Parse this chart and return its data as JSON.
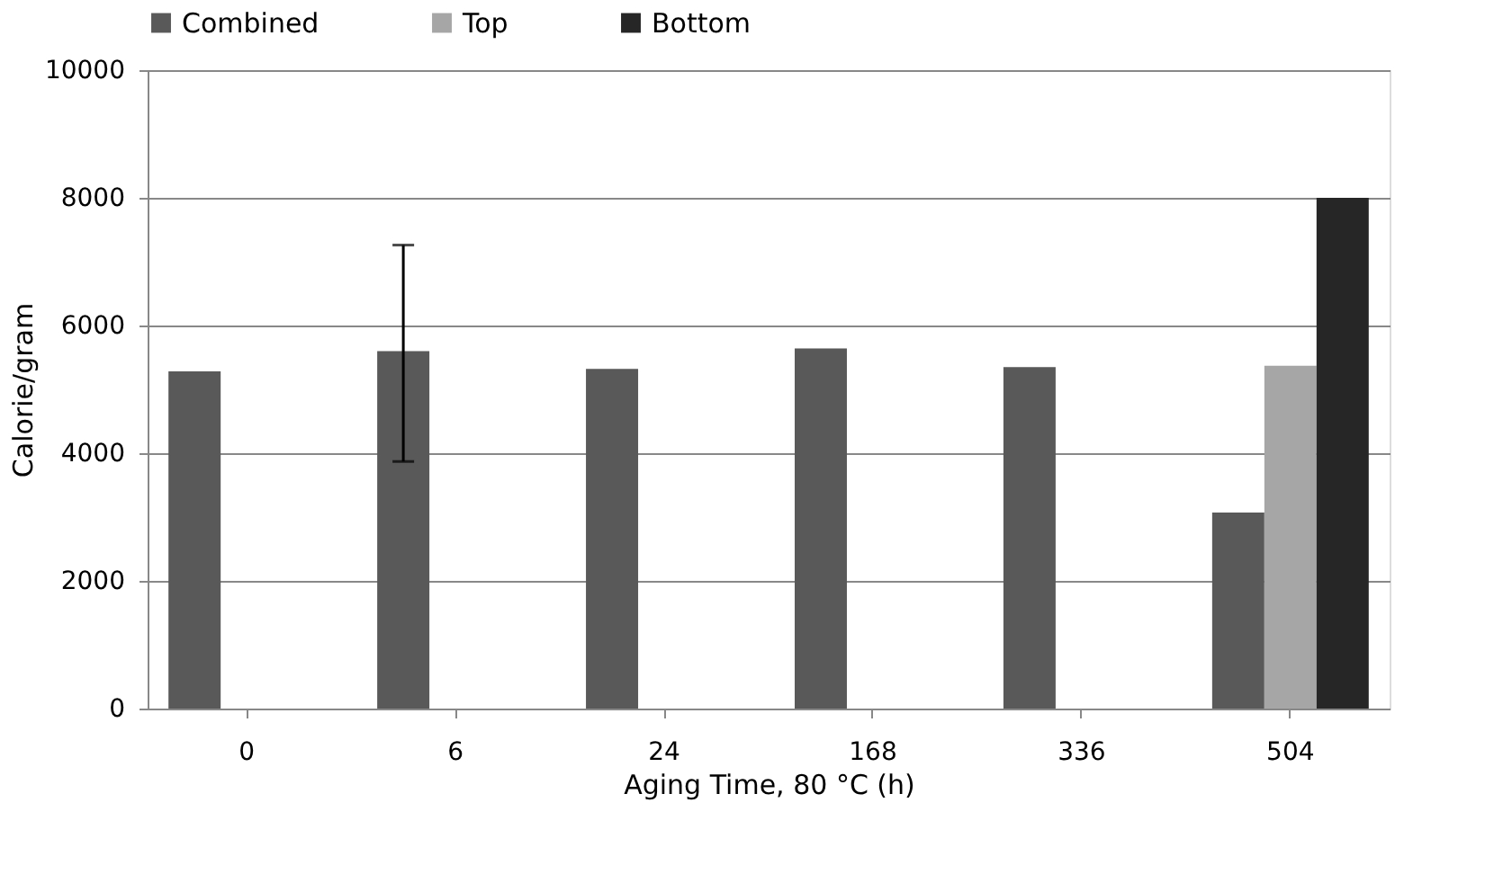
{
  "chart_data": {
    "type": "bar",
    "xlabel": "Aging Time, 80 °C (h)",
    "ylabel": "Calorie/gram",
    "categories": [
      "0",
      "6",
      "24",
      "168",
      "336",
      "504"
    ],
    "series": [
      {
        "name": "Combined",
        "color": "#595959",
        "values": [
          5280,
          5600,
          5320,
          5640,
          5350,
          3070
        ],
        "errors": [
          null,
          [
            3870,
            7260
          ],
          null,
          null,
          null,
          null
        ]
      },
      {
        "name": "Top",
        "color": "#a6a6a6",
        "values": [
          null,
          null,
          null,
          null,
          null,
          5370
        ]
      },
      {
        "name": "Bottom",
        "color": "#262626",
        "values": [
          null,
          null,
          null,
          null,
          null,
          8000
        ]
      }
    ],
    "ylim": [
      0,
      10000
    ],
    "yticks": [
      0,
      2000,
      4000,
      6000,
      8000,
      10000
    ],
    "grid": "y",
    "legend": "top"
  }
}
